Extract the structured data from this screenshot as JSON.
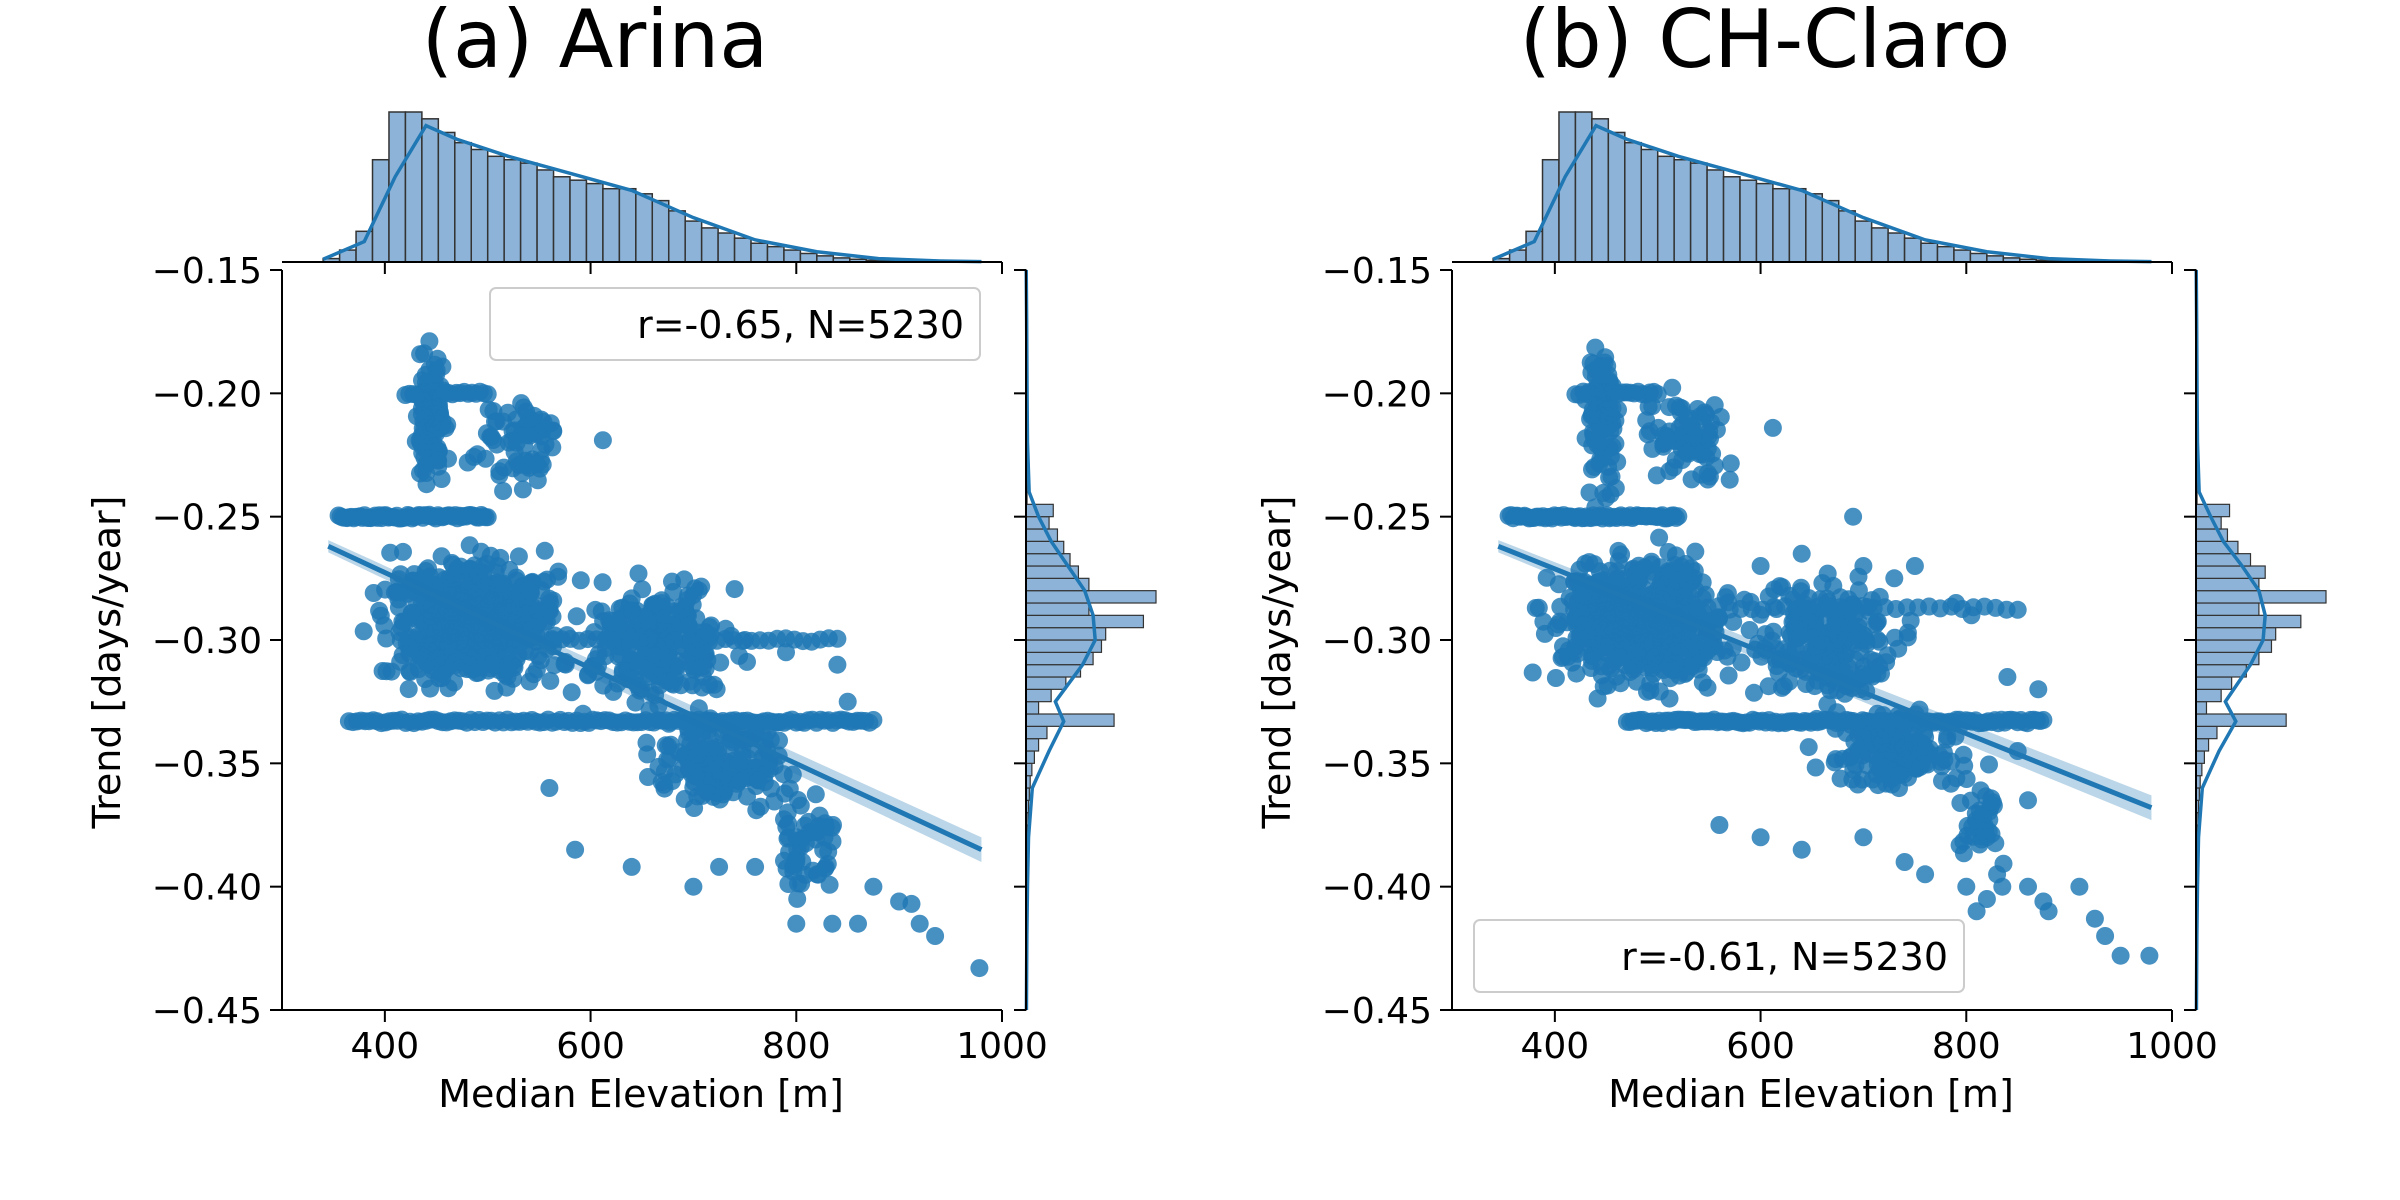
{
  "chart_data": [
    {
      "type": "scatter",
      "title": "(a) Arina",
      "xlabel": "Median Elevation [m]",
      "ylabel": "Trend [days/year]",
      "xlim": [
        300,
        1000
      ],
      "ylim": [
        -0.45,
        -0.15
      ],
      "xticks": [
        400,
        600,
        800,
        1000
      ],
      "yticks": [
        -0.15,
        -0.2,
        -0.25,
        -0.3,
        -0.35,
        -0.4,
        -0.45
      ],
      "xtick_labels": [
        "400",
        "600",
        "800",
        "1000"
      ],
      "ytick_labels": [
        "−0.15",
        "−0.20",
        "−0.25",
        "−0.30",
        "−0.35",
        "−0.40",
        "−0.45"
      ],
      "annotation": "r=-0.65, N=5230",
      "legend_position": "upper right",
      "color": "#1f77b4",
      "regression": {
        "x": [
          345,
          980
        ],
        "y": [
          -0.262,
          -0.385
        ]
      },
      "clusters": [
        {
          "x": [
            345,
            620
          ],
          "y": [
            -0.25,
            -0.335
          ],
          "n": 620
        },
        {
          "x": [
            420,
            470
          ],
          "y": [
            -0.16,
            -0.26
          ],
          "n": 110
        },
        {
          "x": [
            460,
            600
          ],
          "y": [
            -0.19,
            -0.25
          ],
          "n": 70
        },
        {
          "x": [
            550,
            780
          ],
          "y": [
            -0.26,
            -0.34
          ],
          "n": 240
        },
        {
          "x": [
            620,
            840
          ],
          "y": [
            -0.32,
            -0.38
          ],
          "n": 170
        },
        {
          "x": [
            760,
            860
          ],
          "y": [
            -0.35,
            -0.42
          ],
          "n": 50
        }
      ],
      "bands": [
        {
          "x": [
            355,
            500
          ],
          "y": -0.25,
          "n": 70
        },
        {
          "x": [
            420,
            500
          ],
          "y": -0.2,
          "n": 22
        },
        {
          "x": [
            365,
            875
          ],
          "y": -0.333,
          "n": 130
        },
        {
          "x": [
            430,
            840
          ],
          "y": -0.3,
          "n": 50
        }
      ],
      "points": [
        [
          612,
          -0.219
        ],
        [
          618,
          -0.292
        ],
        [
          640,
          -0.288
        ],
        [
          705,
          -0.297
        ],
        [
          750,
          -0.3
        ],
        [
          790,
          -0.305
        ],
        [
          840,
          -0.31
        ],
        [
          850,
          -0.325
        ],
        [
          800,
          -0.38
        ],
        [
          800,
          -0.39
        ],
        [
          820,
          -0.395
        ],
        [
          800,
          -0.415
        ],
        [
          835,
          -0.415
        ],
        [
          860,
          -0.415
        ],
        [
          875,
          -0.4
        ],
        [
          900,
          -0.406
        ],
        [
          912,
          -0.407
        ],
        [
          920,
          -0.415
        ],
        [
          935,
          -0.42
        ],
        [
          978,
          -0.433
        ],
        [
          560,
          -0.36
        ],
        [
          585,
          -0.385
        ],
        [
          640,
          -0.392
        ],
        [
          700,
          -0.4
        ],
        [
          725,
          -0.392
        ],
        [
          760,
          -0.392
        ]
      ],
      "x_marginal": {
        "bins": [
          340,
          356,
          372,
          388,
          404,
          420,
          436,
          452,
          468,
          484,
          500,
          516,
          532,
          548,
          564,
          580,
          596,
          612,
          628,
          644,
          660,
          676,
          692,
          708,
          724,
          740,
          756,
          772,
          788,
          804,
          820,
          836,
          852,
          868,
          884,
          900,
          916,
          932,
          948,
          964,
          980
        ],
        "counts": [
          10,
          35,
          90,
          300,
          440,
          440,
          420,
          380,
          350,
          330,
          310,
          300,
          290,
          270,
          250,
          240,
          230,
          215,
          215,
          200,
          180,
          150,
          120,
          100,
          85,
          70,
          55,
          45,
          35,
          25,
          18,
          12,
          8,
          5,
          3,
          2,
          1,
          1,
          1,
          1
        ],
        "kde": [
          [
            340,
            8
          ],
          [
            380,
            60
          ],
          [
            410,
            250
          ],
          [
            440,
            400
          ],
          [
            470,
            360
          ],
          [
            520,
            310
          ],
          [
            580,
            260
          ],
          [
            640,
            210
          ],
          [
            700,
            130
          ],
          [
            760,
            65
          ],
          [
            820,
            30
          ],
          [
            880,
            10
          ],
          [
            940,
            3
          ],
          [
            980,
            1
          ]
        ]
      },
      "y_marginal": {
        "bins": [
          -0.45,
          -0.445,
          -0.44,
          -0.435,
          -0.43,
          -0.425,
          -0.42,
          -0.415,
          -0.41,
          -0.405,
          -0.4,
          -0.395,
          -0.39,
          -0.385,
          -0.38,
          -0.375,
          -0.37,
          -0.365,
          -0.36,
          -0.355,
          -0.35,
          -0.345,
          -0.34,
          -0.335,
          -0.33,
          -0.325,
          -0.32,
          -0.315,
          -0.31,
          -0.305,
          -0.3,
          -0.295,
          -0.29,
          -0.285,
          -0.28,
          -0.275,
          -0.27,
          -0.265,
          -0.26,
          -0.255,
          -0.25,
          -0.245,
          -0.24,
          -0.235,
          -0.23,
          -0.225,
          -0.22,
          -0.215,
          -0.21,
          -0.205,
          -0.2,
          -0.195,
          -0.19,
          -0.185,
          -0.18,
          -0.175,
          -0.17,
          -0.165,
          -0.16,
          -0.155,
          -0.15
        ],
        "counts": [
          1,
          1,
          1,
          1,
          2,
          2,
          3,
          3,
          3,
          4,
          5,
          6,
          6,
          7,
          8,
          10,
          12,
          16,
          20,
          28,
          40,
          60,
          100,
          420,
          60,
          120,
          190,
          260,
          320,
          360,
          380,
          560,
          300,
          620,
          300,
          250,
          210,
          180,
          150,
          110,
          130,
          5,
          4,
          4,
          4,
          4,
          3,
          3,
          3,
          3,
          5,
          3,
          2,
          2,
          2,
          2,
          2,
          2,
          2,
          2
        ],
        "kde": [
          [
            -0.45,
            2
          ],
          [
            -0.42,
            4
          ],
          [
            -0.4,
            7
          ],
          [
            -0.38,
            12
          ],
          [
            -0.36,
            30
          ],
          [
            -0.345,
            110
          ],
          [
            -0.333,
            180
          ],
          [
            -0.325,
            140
          ],
          [
            -0.31,
            270
          ],
          [
            -0.3,
            330
          ],
          [
            -0.29,
            320
          ],
          [
            -0.28,
            280
          ],
          [
            -0.27,
            200
          ],
          [
            -0.26,
            120
          ],
          [
            -0.25,
            60
          ],
          [
            -0.24,
            15
          ],
          [
            -0.22,
            7
          ],
          [
            -0.2,
            5
          ],
          [
            -0.17,
            3
          ],
          [
            -0.15,
            1
          ]
        ]
      }
    },
    {
      "type": "scatter",
      "title": "(b) CH-Claro",
      "xlabel": "Median Elevation [m]",
      "ylabel": "Trend [days/year]",
      "xlim": [
        300,
        1000
      ],
      "ylim": [
        -0.45,
        -0.15
      ],
      "xticks": [
        400,
        600,
        800,
        1000
      ],
      "yticks": [
        -0.15,
        -0.2,
        -0.25,
        -0.3,
        -0.35,
        -0.4,
        -0.45
      ],
      "xtick_labels": [
        "400",
        "600",
        "800",
        "1000"
      ],
      "ytick_labels": [
        "−0.15",
        "−0.20",
        "−0.25",
        "−0.30",
        "−0.35",
        "−0.40",
        "−0.45"
      ],
      "annotation": "r=-0.61, N=5230",
      "legend_position": "lower left",
      "color": "#1f77b4",
      "regression": {
        "x": [
          345,
          980
        ],
        "y": [
          -0.262,
          -0.368
        ]
      },
      "clusters": [
        {
          "x": [
            345,
            620
          ],
          "y": [
            -0.25,
            -0.335
          ],
          "n": 600
        },
        {
          "x": [
            420,
            470
          ],
          "y": [
            -0.16,
            -0.26
          ],
          "n": 100
        },
        {
          "x": [
            460,
            600
          ],
          "y": [
            -0.19,
            -0.25
          ],
          "n": 80
        },
        {
          "x": [
            550,
            780
          ],
          "y": [
            -0.26,
            -0.34
          ],
          "n": 230
        },
        {
          "x": [
            620,
            840
          ],
          "y": [
            -0.32,
            -0.37
          ],
          "n": 150
        },
        {
          "x": [
            780,
            850
          ],
          "y": [
            -0.35,
            -0.4
          ],
          "n": 40
        }
      ],
      "bands": [
        {
          "x": [
            355,
            520
          ],
          "y": -0.25,
          "n": 75
        },
        {
          "x": [
            420,
            500
          ],
          "y": -0.2,
          "n": 22
        },
        {
          "x": [
            470,
            875
          ],
          "y": -0.333,
          "n": 130
        },
        {
          "x": [
            430,
            850
          ],
          "y": -0.287,
          "n": 40
        }
      ],
      "points": [
        [
          612,
          -0.214
        ],
        [
          570,
          -0.235
        ],
        [
          600,
          -0.27
        ],
        [
          640,
          -0.265
        ],
        [
          690,
          -0.25
        ],
        [
          700,
          -0.27
        ],
        [
          730,
          -0.275
        ],
        [
          750,
          -0.27
        ],
        [
          790,
          -0.285
        ],
        [
          805,
          -0.29
        ],
        [
          840,
          -0.315
        ],
        [
          870,
          -0.32
        ],
        [
          850,
          -0.345
        ],
        [
          860,
          -0.365
        ],
        [
          820,
          -0.38
        ],
        [
          830,
          -0.395
        ],
        [
          820,
          -0.405
        ],
        [
          800,
          -0.4
        ],
        [
          810,
          -0.41
        ],
        [
          835,
          -0.4
        ],
        [
          860,
          -0.4
        ],
        [
          875,
          -0.406
        ],
        [
          880,
          -0.41
        ],
        [
          910,
          -0.4
        ],
        [
          925,
          -0.413
        ],
        [
          935,
          -0.42
        ],
        [
          950,
          -0.428
        ],
        [
          978,
          -0.428
        ],
        [
          560,
          -0.375
        ],
        [
          600,
          -0.38
        ],
        [
          640,
          -0.385
        ],
        [
          700,
          -0.38
        ],
        [
          740,
          -0.39
        ],
        [
          760,
          -0.395
        ]
      ],
      "x_marginal": {
        "bins": [
          340,
          356,
          372,
          388,
          404,
          420,
          436,
          452,
          468,
          484,
          500,
          516,
          532,
          548,
          564,
          580,
          596,
          612,
          628,
          644,
          660,
          676,
          692,
          708,
          724,
          740,
          756,
          772,
          788,
          804,
          820,
          836,
          852,
          868,
          884,
          900,
          916,
          932,
          948,
          964,
          980
        ],
        "counts": [
          10,
          35,
          90,
          300,
          440,
          440,
          420,
          380,
          350,
          330,
          310,
          300,
          290,
          270,
          250,
          240,
          230,
          215,
          215,
          200,
          180,
          150,
          120,
          100,
          85,
          70,
          55,
          45,
          35,
          25,
          18,
          12,
          8,
          5,
          3,
          2,
          1,
          1,
          1,
          1
        ],
        "kde": [
          [
            340,
            8
          ],
          [
            380,
            60
          ],
          [
            410,
            250
          ],
          [
            440,
            400
          ],
          [
            470,
            360
          ],
          [
            520,
            310
          ],
          [
            580,
            260
          ],
          [
            640,
            210
          ],
          [
            700,
            130
          ],
          [
            760,
            65
          ],
          [
            820,
            30
          ],
          [
            880,
            10
          ],
          [
            940,
            3
          ],
          [
            980,
            1
          ]
        ]
      },
      "y_marginal": {
        "bins": [
          -0.45,
          -0.445,
          -0.44,
          -0.435,
          -0.43,
          -0.425,
          -0.42,
          -0.415,
          -0.41,
          -0.405,
          -0.4,
          -0.395,
          -0.39,
          -0.385,
          -0.38,
          -0.375,
          -0.37,
          -0.365,
          -0.36,
          -0.355,
          -0.35,
          -0.345,
          -0.34,
          -0.335,
          -0.33,
          -0.325,
          -0.32,
          -0.315,
          -0.31,
          -0.305,
          -0.3,
          -0.295,
          -0.29,
          -0.285,
          -0.28,
          -0.275,
          -0.27,
          -0.265,
          -0.26,
          -0.255,
          -0.25,
          -0.245,
          -0.24,
          -0.235,
          -0.23,
          -0.225,
          -0.22,
          -0.215,
          -0.21,
          -0.205,
          -0.2,
          -0.195,
          -0.19,
          -0.185,
          -0.18,
          -0.175,
          -0.17,
          -0.165,
          -0.16,
          -0.155,
          -0.15
        ],
        "counts": [
          1,
          1,
          1,
          1,
          2,
          2,
          3,
          3,
          3,
          4,
          5,
          6,
          6,
          7,
          8,
          10,
          12,
          16,
          20,
          28,
          40,
          60,
          100,
          430,
          50,
          120,
          170,
          240,
          300,
          360,
          380,
          500,
          300,
          620,
          300,
          330,
          260,
          200,
          150,
          120,
          160,
          5,
          4,
          4,
          4,
          4,
          3,
          3,
          3,
          3,
          5,
          3,
          2,
          2,
          2,
          2,
          2,
          2,
          2,
          2
        ],
        "kde": [
          [
            -0.45,
            2
          ],
          [
            -0.42,
            4
          ],
          [
            -0.4,
            7
          ],
          [
            -0.38,
            12
          ],
          [
            -0.36,
            30
          ],
          [
            -0.345,
            110
          ],
          [
            -0.333,
            190
          ],
          [
            -0.325,
            140
          ],
          [
            -0.31,
            260
          ],
          [
            -0.3,
            320
          ],
          [
            -0.29,
            330
          ],
          [
            -0.28,
            300
          ],
          [
            -0.27,
            220
          ],
          [
            -0.26,
            130
          ],
          [
            -0.25,
            70
          ],
          [
            -0.24,
            15
          ],
          [
            -0.22,
            7
          ],
          [
            -0.2,
            5
          ],
          [
            -0.17,
            3
          ],
          [
            -0.15,
            1
          ]
        ]
      }
    }
  ]
}
